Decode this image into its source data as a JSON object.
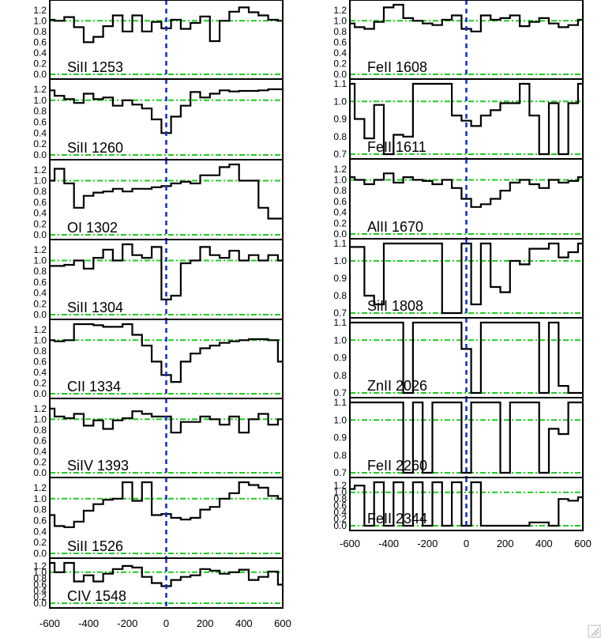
{
  "chart_data": {
    "type": "line",
    "xlim": [
      -600,
      600
    ],
    "xticks": [
      -600,
      -400,
      -200,
      0,
      200,
      400,
      600
    ],
    "reference_color": "#1fcc1f",
    "zero_line_color": "#1226d6",
    "panels": [
      {
        "column": "left",
        "label": "SiII 1253",
        "ylim": [
          0,
          1.3
        ],
        "yticks": [
          "0.0",
          "0.2",
          "0.4",
          "0.6",
          "0.8",
          "1.0",
          "1.2"
        ],
        "ref": [
          0.0,
          1.0
        ],
        "x": [
          -600,
          -550,
          -500,
          -450,
          -400,
          -350,
          -300,
          -250,
          -200,
          -150,
          -100,
          -50,
          0,
          50,
          100,
          150,
          200,
          250,
          300,
          350,
          400,
          450,
          500,
          550,
          600
        ],
        "y": [
          1.02,
          1.0,
          1.07,
          0.88,
          0.6,
          0.7,
          0.9,
          1.1,
          0.8,
          1.1,
          0.8,
          0.98,
          0.86,
          1.02,
          0.85,
          0.96,
          1.08,
          0.62,
          1.0,
          1.17,
          1.25,
          1.16,
          1.1,
          1.02,
          1.0
        ]
      },
      {
        "column": "left",
        "label": "SiII 1260",
        "ylim": [
          0,
          1.3
        ],
        "yticks": [
          "0.0",
          "0.2",
          "0.4",
          "0.6",
          "0.8",
          "1.0",
          "1.2"
        ],
        "ref": [
          0.0,
          1.0
        ],
        "x": [
          -600,
          -550,
          -500,
          -450,
          -400,
          -350,
          -300,
          -250,
          -200,
          -150,
          -100,
          -50,
          0,
          50,
          100,
          150,
          200,
          250,
          300,
          350,
          400,
          450,
          500,
          550,
          600
        ],
        "y": [
          1.18,
          1.08,
          1.02,
          0.95,
          1.12,
          1.02,
          1.05,
          0.9,
          1.0,
          0.92,
          0.85,
          0.65,
          0.4,
          0.7,
          0.9,
          1.15,
          1.05,
          1.12,
          1.18,
          1.16,
          1.17,
          1.17,
          1.18,
          1.2,
          1.2
        ]
      },
      {
        "column": "left",
        "label": "OI 1302",
        "ylim": [
          0,
          1.3
        ],
        "yticks": [
          "0.0",
          "0.2",
          "0.4",
          "0.6",
          "0.8",
          "1.0",
          "1.2"
        ],
        "ref": [
          0.0,
          1.0
        ],
        "x": [
          -600,
          -550,
          -500,
          -450,
          -400,
          -350,
          -300,
          -250,
          -200,
          -150,
          -100,
          -50,
          0,
          50,
          100,
          150,
          200,
          250,
          300,
          350,
          400,
          450,
          500,
          550,
          600
        ],
        "y": [
          1.0,
          1.22,
          0.95,
          0.5,
          0.72,
          0.78,
          0.8,
          0.85,
          0.8,
          0.85,
          0.85,
          0.88,
          0.9,
          0.95,
          0.98,
          0.95,
          1.1,
          1.1,
          1.25,
          1.3,
          1.0,
          1.0,
          0.5,
          0.3,
          0.3
        ]
      },
      {
        "column": "left",
        "label": "SiII 1304",
        "ylim": [
          0,
          1.3
        ],
        "yticks": [
          "0.0",
          "0.2",
          "0.4",
          "0.6",
          "0.8",
          "1.0",
          "1.2"
        ],
        "ref": [
          0.0,
          1.0
        ],
        "x": [
          -600,
          -550,
          -500,
          -450,
          -400,
          -350,
          -300,
          -250,
          -200,
          -150,
          -100,
          -50,
          0,
          50,
          100,
          150,
          200,
          250,
          300,
          350,
          400,
          450,
          500,
          550,
          600
        ],
        "y": [
          0.9,
          0.9,
          0.92,
          1.0,
          0.85,
          1.05,
          1.2,
          1.0,
          1.3,
          1.1,
          1.05,
          1.25,
          0.28,
          0.35,
          0.95,
          1.0,
          1.25,
          1.1,
          1.05,
          1.18,
          1.0,
          1.1,
          1.0,
          1.1,
          1.0
        ]
      },
      {
        "column": "left",
        "label": "CII 1334",
        "ylim": [
          0,
          1.3
        ],
        "yticks": [
          "0.0",
          "0.2",
          "0.4",
          "0.6",
          "0.8",
          "1.0",
          "1.2"
        ],
        "ref": [
          0.0,
          1.0
        ],
        "x": [
          -600,
          -550,
          -500,
          -450,
          -400,
          -350,
          -300,
          -250,
          -200,
          -150,
          -100,
          -50,
          0,
          50,
          100,
          150,
          200,
          250,
          300,
          350,
          400,
          450,
          500,
          550,
          600
        ],
        "y": [
          1.0,
          0.98,
          1.0,
          1.3,
          1.3,
          1.28,
          1.25,
          1.25,
          1.3,
          1.1,
          0.9,
          0.6,
          0.35,
          0.22,
          0.6,
          0.75,
          0.85,
          0.9,
          0.95,
          0.98,
          1.0,
          1.02,
          1.02,
          1.0,
          0.6
        ]
      },
      {
        "column": "left",
        "label": "SiIV 1393",
        "ylim": [
          0,
          1.3
        ],
        "yticks": [
          "0.0",
          "0.2",
          "0.4",
          "0.6",
          "0.8",
          "1.0",
          "1.2"
        ],
        "ref": [
          0.0,
          1.0
        ],
        "x": [
          -600,
          -550,
          -500,
          -450,
          -400,
          -350,
          -300,
          -250,
          -200,
          -150,
          -100,
          -50,
          0,
          50,
          100,
          150,
          200,
          250,
          300,
          350,
          400,
          450,
          500,
          550,
          600
        ],
        "y": [
          1.2,
          1.05,
          1.02,
          1.1,
          0.88,
          0.98,
          0.82,
          0.98,
          1.02,
          1.15,
          1.1,
          1.05,
          1.05,
          0.75,
          0.95,
          0.95,
          1.05,
          1.0,
          0.9,
          1.05,
          0.75,
          1.0,
          1.1,
          0.9,
          1.0
        ]
      },
      {
        "column": "left",
        "label": "SiII 1526",
        "ylim": [
          0,
          1.3
        ],
        "yticks": [
          "0.0",
          "0.2",
          "0.4",
          "0.6",
          "0.8",
          "1.0",
          "1.2"
        ],
        "ref": [
          0.0,
          1.0
        ],
        "x": [
          -600,
          -550,
          -500,
          -450,
          -400,
          -350,
          -300,
          -250,
          -200,
          -150,
          -100,
          -50,
          0,
          50,
          100,
          150,
          200,
          250,
          300,
          350,
          400,
          450,
          500,
          550,
          600
        ],
        "y": [
          0.7,
          0.5,
          0.48,
          0.58,
          0.78,
          0.9,
          0.98,
          1.0,
          1.3,
          0.96,
          1.3,
          0.7,
          0.72,
          0.65,
          0.62,
          0.65,
          0.8,
          0.85,
          1.0,
          1.1,
          1.3,
          1.25,
          1.2,
          1.05,
          1.0
        ]
      },
      {
        "column": "left",
        "label": "CIV 1548",
        "ylim": [
          0,
          1.3
        ],
        "yticks": [
          "0.0",
          "0.2",
          "0.4",
          "0.6",
          "0.8",
          "1.0",
          "1.2"
        ],
        "ref": [
          0.0,
          1.0
        ],
        "x": [
          -600,
          -550,
          -500,
          -450,
          -400,
          -350,
          -300,
          -250,
          -200,
          -150,
          -100,
          -50,
          0,
          50,
          100,
          150,
          200,
          250,
          300,
          350,
          400,
          450,
          500,
          550,
          600
        ],
        "y": [
          1.3,
          1.0,
          1.3,
          0.7,
          0.9,
          0.7,
          0.95,
          1.1,
          1.2,
          1.15,
          0.85,
          0.65,
          0.55,
          0.75,
          0.85,
          0.9,
          1.1,
          1.05,
          0.95,
          1.0,
          1.08,
          0.75,
          0.85,
          1.02,
          0.6
        ]
      },
      {
        "column": "right",
        "label": "FeII 1608",
        "ylim": [
          0,
          1.3
        ],
        "yticks": [
          "0.0",
          "0.2",
          "0.4",
          "0.6",
          "0.8",
          "1.0",
          "1.2"
        ],
        "ref": [
          0.0,
          1.0
        ],
        "x": [
          -600,
          -550,
          -500,
          -450,
          -400,
          -350,
          -300,
          -250,
          -200,
          -150,
          -100,
          -50,
          0,
          50,
          100,
          150,
          200,
          250,
          300,
          350,
          400,
          450,
          500,
          550,
          600
        ],
        "y": [
          0.95,
          0.88,
          0.85,
          0.98,
          1.25,
          1.3,
          1.05,
          1.0,
          0.95,
          0.92,
          1.02,
          1.1,
          0.85,
          0.8,
          1.1,
          1.02,
          1.05,
          1.1,
          0.9,
          0.98,
          1.05,
          0.95,
          0.88,
          0.92,
          1.02
        ]
      },
      {
        "column": "right",
        "label": "FeII 1611",
        "ylim": [
          0.7,
          1.1
        ],
        "yticks": [
          "0.7",
          "0.8",
          "0.9",
          "1.0",
          "1.1"
        ],
        "ref": [
          0.7,
          1.0
        ],
        "x": [
          -600,
          -550,
          -500,
          -450,
          -400,
          -350,
          -300,
          -250,
          -200,
          -150,
          -100,
          -50,
          0,
          50,
          100,
          150,
          200,
          250,
          300,
          350,
          400,
          450,
          500,
          550,
          600
        ],
        "y": [
          1.1,
          0.9,
          0.79,
          0.98,
          0.7,
          0.81,
          0.8,
          1.1,
          1.1,
          1.1,
          1.1,
          0.92,
          0.89,
          0.86,
          0.92,
          0.95,
          0.99,
          0.99,
          1.1,
          0.92,
          0.65,
          0.99,
          0.65,
          0.99,
          1.1
        ]
      },
      {
        "column": "right",
        "label": "AlII 1670",
        "ylim": [
          0,
          1.3
        ],
        "yticks": [
          "0.0",
          "0.2",
          "0.4",
          "0.6",
          "0.8",
          "1.0",
          "1.2"
        ],
        "ref": [
          0.0,
          1.0
        ],
        "x": [
          -600,
          -550,
          -500,
          -450,
          -400,
          -350,
          -300,
          -250,
          -200,
          -150,
          -100,
          -50,
          0,
          50,
          100,
          150,
          200,
          250,
          300,
          350,
          400,
          450,
          500,
          550,
          600
        ],
        "y": [
          1.05,
          1.0,
          0.92,
          1.0,
          1.12,
          0.95,
          1.05,
          1.0,
          0.98,
          0.92,
          1.0,
          0.85,
          0.65,
          0.5,
          0.55,
          0.65,
          0.8,
          0.95,
          1.0,
          0.92,
          0.85,
          1.0,
          0.95,
          0.98,
          1.05
        ]
      },
      {
        "column": "right",
        "label": "SiII 1808",
        "ylim": [
          0.7,
          1.1
        ],
        "yticks": [
          "0.7",
          "0.8",
          "0.9",
          "1.0",
          "1.1"
        ],
        "ref": [
          0.7,
          1.0
        ],
        "x": [
          -600,
          -550,
          -500,
          -450,
          -400,
          -350,
          -300,
          -250,
          -200,
          -150,
          -100,
          -50,
          0,
          50,
          100,
          150,
          200,
          250,
          300,
          350,
          400,
          450,
          500,
          550,
          600
        ],
        "y": [
          1.08,
          1.08,
          0.8,
          0.75,
          1.1,
          1.1,
          1.1,
          1.12,
          1.12,
          1.1,
          0.7,
          0.7,
          1.1,
          0.75,
          1.1,
          0.85,
          0.82,
          1.0,
          0.98,
          1.07,
          1.07,
          1.12,
          1.02,
          1.05,
          1.1
        ]
      },
      {
        "column": "right",
        "label": "ZnII 2026",
        "ylim": [
          0.7,
          1.1
        ],
        "yticks": [
          "0.7",
          "0.8",
          "0.9",
          "1.0",
          "1.1"
        ],
        "ref": [
          0.7,
          1.0
        ],
        "x": [
          -600,
          -550,
          -500,
          -450,
          -400,
          -350,
          -300,
          -250,
          -200,
          -150,
          -100,
          -50,
          0,
          50,
          100,
          150,
          200,
          250,
          300,
          350,
          400,
          450,
          500,
          550,
          600
        ],
        "y": [
          1.1,
          1.1,
          1.1,
          1.1,
          1.1,
          1.1,
          0.65,
          1.1,
          1.1,
          1.1,
          1.1,
          1.1,
          0.95,
          0.65,
          1.1,
          1.1,
          1.1,
          1.1,
          1.1,
          1.1,
          0.65,
          1.1,
          0.74,
          0.65,
          0.65
        ]
      },
      {
        "column": "right",
        "label": "FeII 2260",
        "ylim": [
          0.7,
          1.1
        ],
        "yticks": [
          "0.7",
          "0.8",
          "0.9",
          "1.0",
          "1.1"
        ],
        "ref": [
          0.7,
          1.0
        ],
        "x": [
          -600,
          -550,
          -500,
          -450,
          -400,
          -350,
          -300,
          -250,
          -200,
          -150,
          -100,
          -50,
          0,
          50,
          100,
          150,
          200,
          250,
          300,
          350,
          400,
          450,
          500,
          550,
          600
        ],
        "y": [
          1.1,
          1.1,
          1.1,
          1.1,
          1.1,
          1.1,
          0.65,
          1.1,
          0.65,
          1.1,
          1.1,
          1.1,
          0.65,
          1.1,
          1.1,
          1.1,
          0.65,
          1.1,
          1.1,
          1.1,
          0.65,
          0.95,
          0.92,
          1.1,
          1.1
        ]
      },
      {
        "column": "right",
        "label": "FeII 2344",
        "ylim": [
          0,
          1.3
        ],
        "yticks": [
          "0.0",
          "0.2",
          "0.4",
          "0.6",
          "0.8",
          "1.0",
          "1.2"
        ],
        "ref": [
          0.0,
          1.0
        ],
        "x": [
          -600,
          -550,
          -500,
          -450,
          -400,
          -350,
          -300,
          -250,
          -200,
          -150,
          -100,
          -50,
          0,
          50,
          100,
          150,
          200,
          250,
          300,
          350,
          400,
          450,
          500,
          550,
          600
        ],
        "y": [
          1.1,
          1.2,
          0.0,
          1.3,
          0.0,
          1.3,
          0.0,
          1.3,
          0.0,
          1.3,
          0.0,
          1.3,
          0.0,
          1.3,
          0.0,
          0.0,
          0.0,
          0.0,
          0.0,
          0.1,
          0.1,
          0.0,
          0.8,
          0.75,
          0.85
        ]
      }
    ]
  }
}
